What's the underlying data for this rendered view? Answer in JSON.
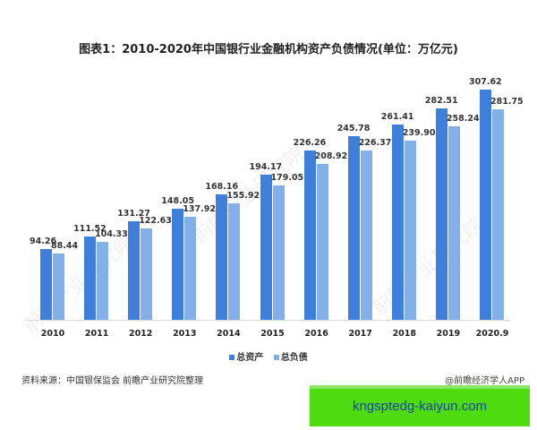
{
  "title": "图表1：2010-2020年中国银行业金融机构资产负债情况(单位：万亿元)",
  "legend": [
    {
      "label": "总资产",
      "color": "#3f7fdc"
    },
    {
      "label": "总负债",
      "color": "#84b0ea"
    }
  ],
  "source": "资料来源：中国银保监会 前瞻产业研究院整理",
  "credit": "@前瞻经济学人APP",
  "watermark": "前瞻产业研究院",
  "banner": "kngsptedg-kaiyun.com",
  "chart_data": {
    "type": "bar",
    "title": "图表1：2010-2020年中国银行业金融机构资产负债情况(单位：万亿元)",
    "xlabel": "",
    "ylabel": "万亿元",
    "categories": [
      "2010",
      "2011",
      "2012",
      "2013",
      "2014",
      "2015",
      "2016",
      "2017",
      "2018",
      "2019",
      "2020.9"
    ],
    "series": [
      {
        "name": "总资产",
        "color": "#3f7fdc",
        "values": [
          94.26,
          111.52,
          131.27,
          148.05,
          168.16,
          194.17,
          226.26,
          245.78,
          261.41,
          282.51,
          307.62
        ]
      },
      {
        "name": "总负债",
        "color": "#84b0ea",
        "values": [
          88.44,
          104.33,
          122.63,
          137.92,
          155.92,
          179.05,
          208.92,
          226.37,
          239.9,
          258.24,
          281.75
        ]
      }
    ],
    "labels": {
      "assets": [
        "94.26",
        "111.52",
        "131.27",
        "148.05",
        "168.16",
        "194.17",
        "226.26",
        "245.78",
        "261.41",
        "282.51",
        "307.62"
      ],
      "liabilities": [
        "88.44",
        "104.33",
        "122.63",
        "137.92",
        "155.92",
        "179.05",
        "208.92",
        "226.37",
        "239.90",
        "258.24",
        "281.75"
      ]
    },
    "ylim": [
      0,
      320
    ],
    "grid": false,
    "legend_position": "bottom"
  }
}
